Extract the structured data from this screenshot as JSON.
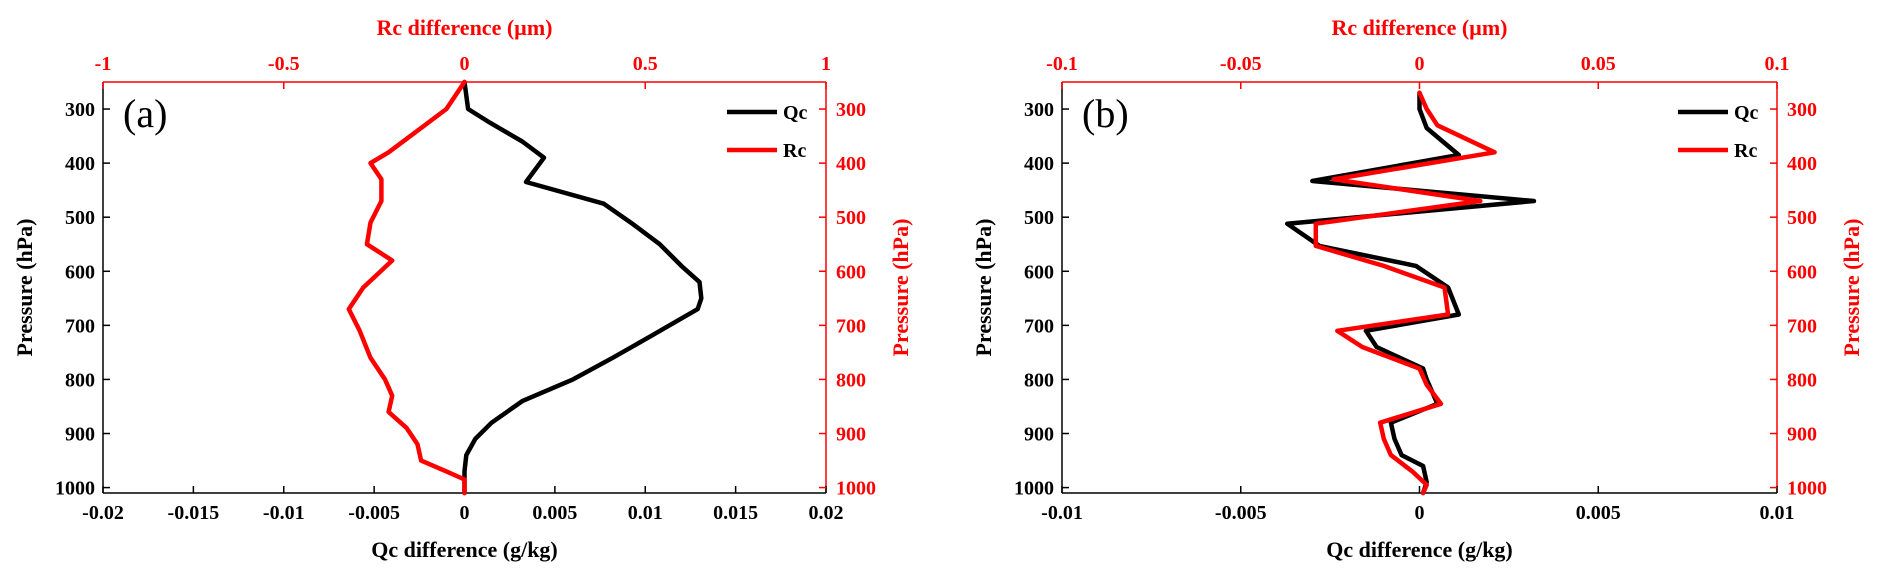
{
  "colors": {
    "qc": "#000000",
    "rc": "#ff0000"
  },
  "chart_data": [
    {
      "type": "line",
      "panel_label": "(a)",
      "xlabel": "Qc difference (g/kg)",
      "x2label": "Rc difference (µm)",
      "ylabel": "Pressure (hPa)",
      "y2label": "Pressure (hPa)",
      "xlim": [
        -0.02,
        0.02
      ],
      "xticks": [
        "-0.02",
        "-0.015",
        "-0.01",
        "-0.005",
        "0",
        "0.005",
        "0.01",
        "0.015",
        "0.02"
      ],
      "x2lim": [
        -1,
        1
      ],
      "x2ticks": [
        "-1",
        "-0.5",
        "0",
        "0.5",
        "1"
      ],
      "ylim": [
        250,
        1010
      ],
      "y_reversed": true,
      "yticks": [
        "300",
        "400",
        "500",
        "600",
        "700",
        "800",
        "900",
        "1000"
      ],
      "legend_position": "top-right",
      "series": [
        {
          "name": "Qc",
          "axis": "bottom",
          "points": [
            [
              0,
              250
            ],
            [
              0.0002,
              300
            ],
            [
              0.0014,
              325
            ],
            [
              0.0032,
              360
            ],
            [
              0.0044,
              390
            ],
            [
              0.0034,
              435
            ],
            [
              0.0077,
              475
            ],
            [
              0.0092,
              510
            ],
            [
              0.0108,
              550
            ],
            [
              0.012,
              590
            ],
            [
              0.013,
              620
            ],
            [
              0.0131,
              650
            ],
            [
              0.0129,
              670
            ],
            [
              0.0103,
              720
            ],
            [
              0.0082,
              760
            ],
            [
              0.006,
              800
            ],
            [
              0.0032,
              840
            ],
            [
              0.0015,
              880
            ],
            [
              0.0006,
              910
            ],
            [
              0.0001,
              940
            ],
            [
              0,
              970
            ],
            [
              0,
              1010
            ]
          ]
        },
        {
          "name": "Rc",
          "axis": "top",
          "points": [
            [
              0,
              250
            ],
            [
              -0.05,
              300
            ],
            [
              -0.13,
              340
            ],
            [
              -0.21,
              380
            ],
            [
              -0.26,
              400
            ],
            [
              -0.23,
              430
            ],
            [
              -0.23,
              470
            ],
            [
              -0.26,
              510
            ],
            [
              -0.27,
              550
            ],
            [
              -0.2,
              580
            ],
            [
              -0.28,
              630
            ],
            [
              -0.32,
              670
            ],
            [
              -0.29,
              710
            ],
            [
              -0.26,
              760
            ],
            [
              -0.22,
              800
            ],
            [
              -0.2,
              830
            ],
            [
              -0.21,
              860
            ],
            [
              -0.16,
              890
            ],
            [
              -0.13,
              920
            ],
            [
              -0.12,
              950
            ],
            [
              -0.05,
              970
            ],
            [
              0,
              985
            ],
            [
              0,
              1010
            ]
          ]
        }
      ]
    },
    {
      "type": "line",
      "panel_label": "(b)",
      "xlabel": "Qc difference (g/kg)",
      "x2label": "Rc difference (µm)",
      "ylabel": "Pressure (hPa)",
      "y2label": "Pressure (hPa)",
      "xlim": [
        -0.01,
        0.01
      ],
      "xticks": [
        "-0.01",
        "-0.005",
        "0",
        "0.005",
        "0.01"
      ],
      "x2lim": [
        -0.1,
        0.1
      ],
      "x2ticks": [
        "-0.1",
        "-0.05",
        "0",
        "0.05",
        "0.1"
      ],
      "ylim": [
        250,
        1010
      ],
      "y_reversed": true,
      "yticks": [
        "300",
        "400",
        "500",
        "600",
        "700",
        "800",
        "900",
        "1000"
      ],
      "legend_position": "top-right",
      "series": [
        {
          "name": "Qc",
          "axis": "bottom",
          "points": [
            [
              0,
              270
            ],
            [
              0,
              300
            ],
            [
              0.0002,
              335
            ],
            [
              0.0011,
              385
            ],
            [
              -0.003,
              433
            ],
            [
              0.0032,
              470
            ],
            [
              -0.0037,
              512
            ],
            [
              -0.0028,
              553
            ],
            [
              -0.0001,
              590
            ],
            [
              0.0008,
              630
            ],
            [
              0.0011,
              680
            ],
            [
              -0.0015,
              710
            ],
            [
              -0.0012,
              740
            ],
            [
              0.0001,
              780
            ],
            [
              0.0002,
              800
            ],
            [
              0.0005,
              845
            ],
            [
              -0.0008,
              880
            ],
            [
              -0.0007,
              910
            ],
            [
              -0.0005,
              940
            ],
            [
              0.0001,
              960
            ],
            [
              0.0002,
              990
            ],
            [
              0.0001,
              1010
            ]
          ]
        },
        {
          "name": "Rc",
          "axis": "top",
          "points": [
            [
              0,
              270
            ],
            [
              0.002,
              300
            ],
            [
              0.005,
              330
            ],
            [
              0.021,
              380
            ],
            [
              -0.024,
              430
            ],
            [
              0.017,
              470
            ],
            [
              -0.029,
              512
            ],
            [
              -0.029,
              553
            ],
            [
              -0.01,
              590
            ],
            [
              0.007,
              630
            ],
            [
              0.008,
              680
            ],
            [
              -0.023,
              710
            ],
            [
              -0.016,
              740
            ],
            [
              0,
              780
            ],
            [
              0.002,
              810
            ],
            [
              0.006,
              845
            ],
            [
              -0.011,
              880
            ],
            [
              -0.01,
              910
            ],
            [
              -0.008,
              940
            ],
            [
              -0.002,
              970
            ],
            [
              0.002,
              995
            ],
            [
              0.001,
              1010
            ]
          ]
        }
      ]
    }
  ]
}
